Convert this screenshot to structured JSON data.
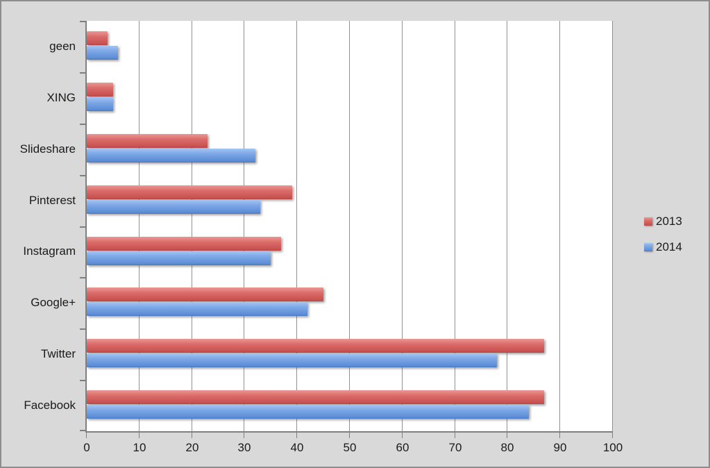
{
  "chart_data": {
    "type": "bar",
    "orientation": "horizontal",
    "title": "",
    "xlabel": "",
    "ylabel": "",
    "xlim": [
      0,
      100
    ],
    "xticks": [
      0,
      10,
      20,
      30,
      40,
      50,
      60,
      70,
      80,
      90,
      100
    ],
    "grid": true,
    "legend_position": "right-center",
    "categories": [
      "geen",
      "XING",
      "Slideshare",
      "Pinterest",
      "Instagram",
      "Google+",
      "Twitter",
      "Facebook"
    ],
    "series": [
      {
        "name": "2013",
        "color": "#d5605e",
        "values": [
          4,
          5,
          23,
          39,
          37,
          45,
          87,
          87
        ]
      },
      {
        "name": "2014",
        "color": "#6d9ce3",
        "values": [
          6,
          5,
          32,
          33,
          35,
          42,
          78,
          84
        ]
      }
    ]
  },
  "colors": {
    "background": "#d9d9d9",
    "plot_background": "#ffffff",
    "gridline": "#909090",
    "axis": "#7f7f7f",
    "frame_border": "#8d8d8d",
    "text": "#1a1a1a"
  }
}
